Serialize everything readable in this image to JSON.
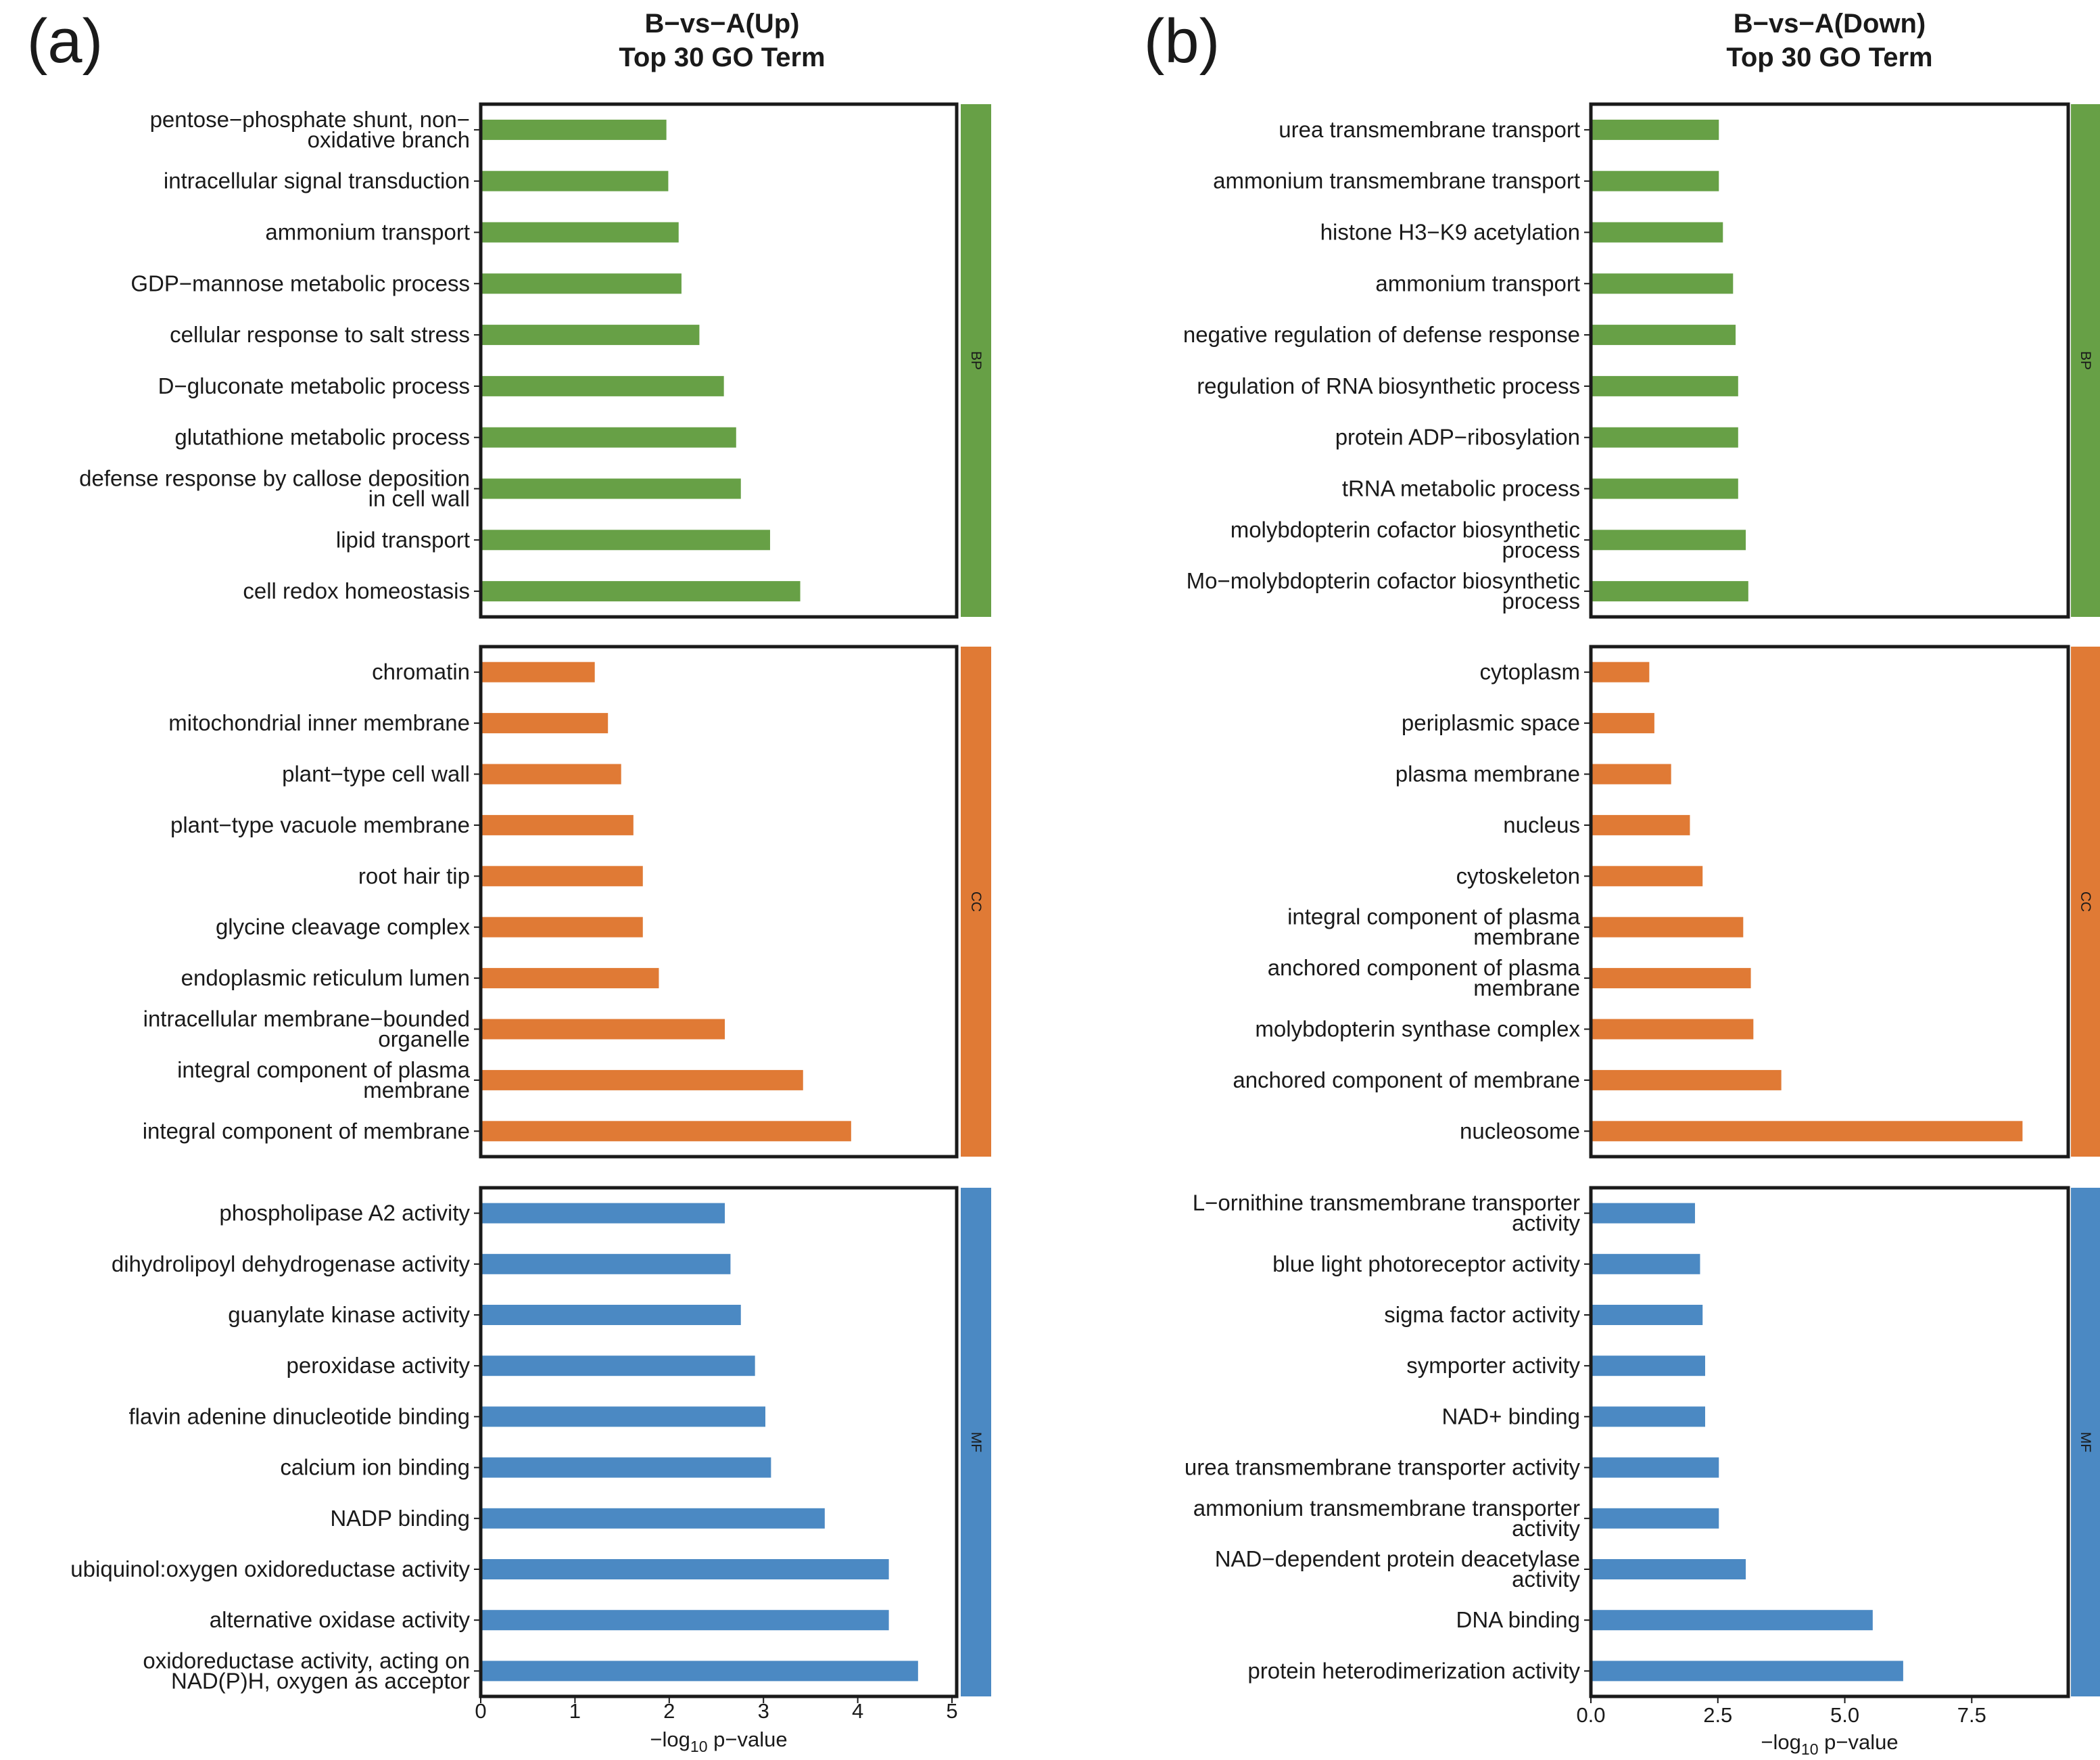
{
  "colors": {
    "BP": "#67a046",
    "CC": "#e07a35",
    "MF": "#4b89c3"
  },
  "chart_data": [
    {
      "type": "bar",
      "orientation": "horizontal",
      "panel_label": "(a)",
      "title_line1": "B−vs−A(Up)",
      "title_line2": "Top 30 GO Term",
      "xlabel_prefix": "−log",
      "xlabel_sub": "10",
      "xlabel_suffix": " p−value",
      "xlim": [
        0,
        5.05
      ],
      "xticks": [
        0,
        1,
        2,
        3,
        4,
        5
      ],
      "xtick_labels": [
        "0",
        "1",
        "2",
        "3",
        "4",
        "5"
      ],
      "facets": [
        {
          "name": "BP",
          "terms": [
            {
              "label": "pentose−phosphate shunt, non−\noxidative branch",
              "value": 1.97
            },
            {
              "label": "intracellular signal transduction",
              "value": 1.99
            },
            {
              "label": "ammonium transport",
              "value": 2.1
            },
            {
              "label": "GDP−mannose metabolic process",
              "value": 2.13
            },
            {
              "label": "cellular response to salt stress",
              "value": 2.32
            },
            {
              "label": "D−gluconate metabolic process",
              "value": 2.58
            },
            {
              "label": "glutathione metabolic process",
              "value": 2.71
            },
            {
              "label": "defense response by callose deposition\nin cell wall",
              "value": 2.76
            },
            {
              "label": "lipid transport",
              "value": 3.07
            },
            {
              "label": "cell redox homeostasis",
              "value": 3.39
            }
          ]
        },
        {
          "name": "CC",
          "terms": [
            {
              "label": "chromatin",
              "value": 1.21
            },
            {
              "label": "mitochondrial inner membrane",
              "value": 1.35
            },
            {
              "label": "plant−type cell wall",
              "value": 1.49
            },
            {
              "label": "plant−type vacuole membrane",
              "value": 1.62
            },
            {
              "label": "root hair tip",
              "value": 1.72
            },
            {
              "label": "glycine cleavage complex",
              "value": 1.72
            },
            {
              "label": "endoplasmic reticulum lumen",
              "value": 1.89
            },
            {
              "label": "intracellular membrane−bounded\norganelle",
              "value": 2.59
            },
            {
              "label": "integral component of plasma\nmembrane",
              "value": 3.42
            },
            {
              "label": "integral component of membrane",
              "value": 3.93
            }
          ]
        },
        {
          "name": "MF",
          "terms": [
            {
              "label": "phospholipase A2 activity",
              "value": 2.59
            },
            {
              "label": "dihydrolipoyl dehydrogenase activity",
              "value": 2.65
            },
            {
              "label": "guanylate kinase activity",
              "value": 2.76
            },
            {
              "label": "peroxidase activity",
              "value": 2.91
            },
            {
              "label": "flavin adenine dinucleotide binding",
              "value": 3.02
            },
            {
              "label": "calcium ion binding",
              "value": 3.08
            },
            {
              "label": "NADP binding",
              "value": 3.65
            },
            {
              "label": "ubiquinol:oxygen oxidoreductase activity",
              "value": 4.33
            },
            {
              "label": "alternative oxidase activity",
              "value": 4.33
            },
            {
              "label": "oxidoreductase activity, acting on\nNAD(P)H, oxygen as acceptor",
              "value": 4.64
            }
          ]
        }
      ]
    },
    {
      "type": "bar",
      "orientation": "horizontal",
      "panel_label": "(b)",
      "title_line1": "B−vs−A(Down)",
      "title_line2": "Top 30 GO Term",
      "xlabel_prefix": "−log",
      "xlabel_sub": "10",
      "xlabel_suffix": " p−value",
      "xlim": [
        0,
        9.4
      ],
      "xticks": [
        0,
        2.5,
        5,
        7.5
      ],
      "xtick_labels": [
        "0.0",
        "2.5",
        "5.0",
        "7.5"
      ],
      "facets": [
        {
          "name": "BP",
          "terms": [
            {
              "label": "urea transmembrane transport",
              "value": 2.52
            },
            {
              "label": "ammonium transmembrane transport",
              "value": 2.52
            },
            {
              "label": "histone H3−K9 acetylation",
              "value": 2.6
            },
            {
              "label": "ammonium transport",
              "value": 2.8
            },
            {
              "label": "negative regulation of defense response",
              "value": 2.85
            },
            {
              "label": "regulation of RNA biosynthetic process",
              "value": 2.9
            },
            {
              "label": "protein ADP−ribosylation",
              "value": 2.9
            },
            {
              "label": "tRNA metabolic process",
              "value": 2.9
            },
            {
              "label": "molybdopterin cofactor biosynthetic\nprocess",
              "value": 3.05
            },
            {
              "label": "Mo−molybdopterin cofactor biosynthetic\nprocess",
              "value": 3.1
            }
          ]
        },
        {
          "name": "CC",
          "terms": [
            {
              "label": "cytoplasm",
              "value": 1.15
            },
            {
              "label": "periplasmic space",
              "value": 1.25
            },
            {
              "label": "plasma membrane",
              "value": 1.58
            },
            {
              "label": "nucleus",
              "value": 1.95
            },
            {
              "label": "cytoskeleton",
              "value": 2.2
            },
            {
              "label": "integral component of plasma\nmembrane",
              "value": 3.0
            },
            {
              "label": "anchored component of plasma\nmembrane",
              "value": 3.15
            },
            {
              "label": "molybdopterin synthase complex",
              "value": 3.2
            },
            {
              "label": "anchored component of membrane",
              "value": 3.75
            },
            {
              "label": "nucleosome",
              "value": 8.5
            }
          ]
        },
        {
          "name": "MF",
          "terms": [
            {
              "label": "L−ornithine transmembrane transporter\nactivity",
              "value": 2.05
            },
            {
              "label": "blue light photoreceptor activity",
              "value": 2.15
            },
            {
              "label": "sigma factor activity",
              "value": 2.2
            },
            {
              "label": "symporter activity",
              "value": 2.25
            },
            {
              "label": "NAD+ binding",
              "value": 2.25
            },
            {
              "label": "urea transmembrane transporter activity",
              "value": 2.52
            },
            {
              "label": "ammonium transmembrane transporter\nactivity",
              "value": 2.52
            },
            {
              "label": "NAD−dependent protein deacetylase\nactivity",
              "value": 3.05
            },
            {
              "label": "DNA binding",
              "value": 5.55
            },
            {
              "label": "protein heterodimerization activity",
              "value": 6.15
            }
          ]
        }
      ]
    }
  ]
}
